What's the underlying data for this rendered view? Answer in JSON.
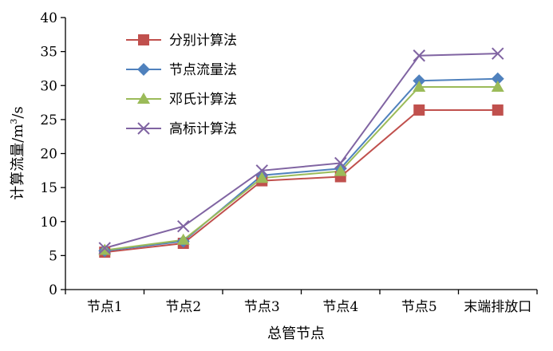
{
  "chart_data": {
    "type": "line",
    "title": "",
    "xlabel": "总管节点",
    "ylabel_main": "计算流量/m",
    "ylabel_sup": "3",
    "ylabel_tail": "/s",
    "ylim": [
      0,
      40
    ],
    "yticks": [
      0,
      5,
      10,
      15,
      20,
      25,
      30,
      35,
      40
    ],
    "grid": false,
    "legend_position": "top-left",
    "categories": [
      "节点1",
      "节点2",
      "节点3",
      "节点4",
      "节点5",
      "末端排放口"
    ],
    "series": [
      {
        "name": "分别计算法",
        "color": "#c0504d",
        "marker": "square",
        "values": [
          5.5,
          6.8,
          16.0,
          16.6,
          26.4,
          26.4
        ]
      },
      {
        "name": "节点流量法",
        "color": "#4f81bd",
        "marker": "diamond",
        "values": [
          5.7,
          7.1,
          16.8,
          17.8,
          30.7,
          31.0
        ]
      },
      {
        "name": "邓氏计算法",
        "color": "#9bbb59",
        "marker": "triangle",
        "values": [
          5.8,
          7.3,
          16.4,
          17.4,
          29.8,
          29.8
        ]
      },
      {
        "name": "高标计算法",
        "color": "#8064a2",
        "marker": "x",
        "values": [
          6.1,
          9.3,
          17.5,
          18.6,
          34.4,
          34.7
        ]
      }
    ]
  }
}
